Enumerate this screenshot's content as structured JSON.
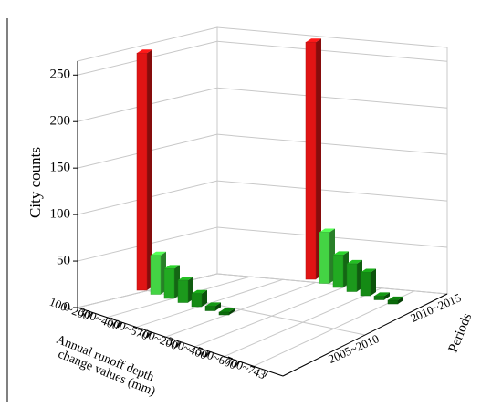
{
  "chart_data": {
    "type": "bar3d",
    "ylabel": "City counts",
    "xlabel_lines": [
      "Annual runoff depth",
      "change values (mm)"
    ],
    "zlabel": "Periods",
    "categories": [
      "100~200",
      "300~400",
      "500~570",
      "100~200",
      "300~400",
      "500~600",
      "700~743"
    ],
    "series": [
      {
        "name": "2005~2010",
        "values": [
          255,
          42,
          32,
          24,
          14,
          5,
          3
        ]
      },
      {
        "name": "2010~2015",
        "values": [
          255,
          55,
          35,
          30,
          25,
          4,
          4
        ]
      }
    ],
    "colors": [
      "#e01414",
      "#44d444",
      "#22aa22",
      "#1c991c",
      "#148a14",
      "#0f7a0f",
      "#0b6a0b"
    ],
    "ylim": [
      0,
      265
    ],
    "yticks": [
      0,
      50,
      100,
      150,
      200,
      250
    ],
    "grid": true
  }
}
